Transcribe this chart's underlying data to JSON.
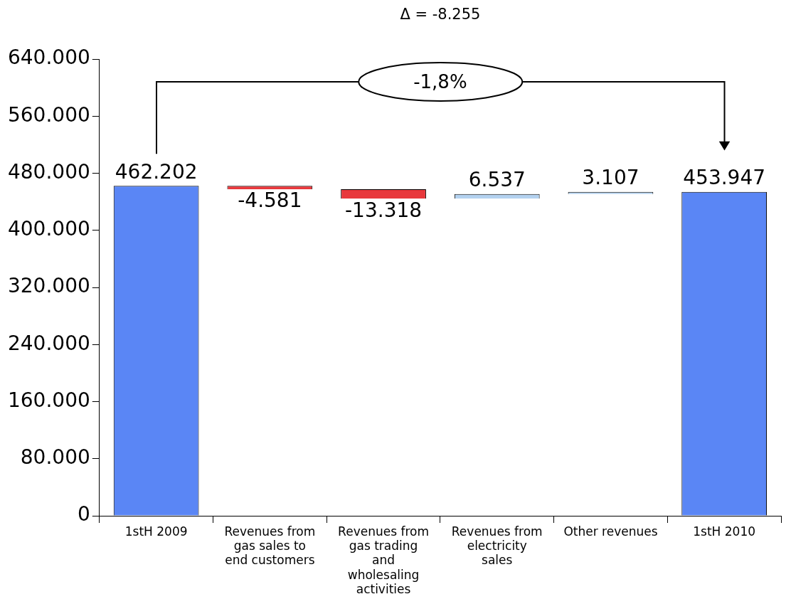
{
  "chart_data": {
    "type": "bar",
    "categories": [
      "1stH 2009",
      "Revenues from gas sales to end customers",
      "Revenues from gas trading and wholesaling activities",
      "Revenues from electricity sales",
      "Other revenues",
      "1stH 2010"
    ],
    "values": [
      462202,
      -4581,
      -13318,
      6537,
      3107,
      453947
    ],
    "base": [
      0,
      462202,
      457621,
      444303,
      450840,
      0
    ],
    "colors": [
      "#5a86f5",
      "#e8383c",
      "#e8383c",
      "#b4d2f0",
      "#b4d2f0",
      "#5a86f5"
    ],
    "value_labels": [
      "462.202",
      "-4.581",
      "-13.318",
      "6.537",
      "3.107",
      "453.947"
    ],
    "ylim": [
      0,
      640000
    ],
    "yticks": [
      0,
      {
        "value": 80000,
        "label": "80.000"
      },
      {
        "value": 160000,
        "label": "160.000"
      },
      {
        "value": 240000,
        "label": "240.000"
      },
      {
        "value": 320000,
        "label": "320.000"
      },
      {
        "value": 400000,
        "label": "400.000"
      },
      {
        "value": 480000,
        "label": "480.000"
      },
      {
        "value": 560000,
        "label": "560.000"
      },
      {
        "value": 640000,
        "label": "640.000"
      }
    ],
    "annotations": [
      "Δ = -8.255",
      "-1,8%"
    ],
    "grid": false,
    "legend": false
  }
}
